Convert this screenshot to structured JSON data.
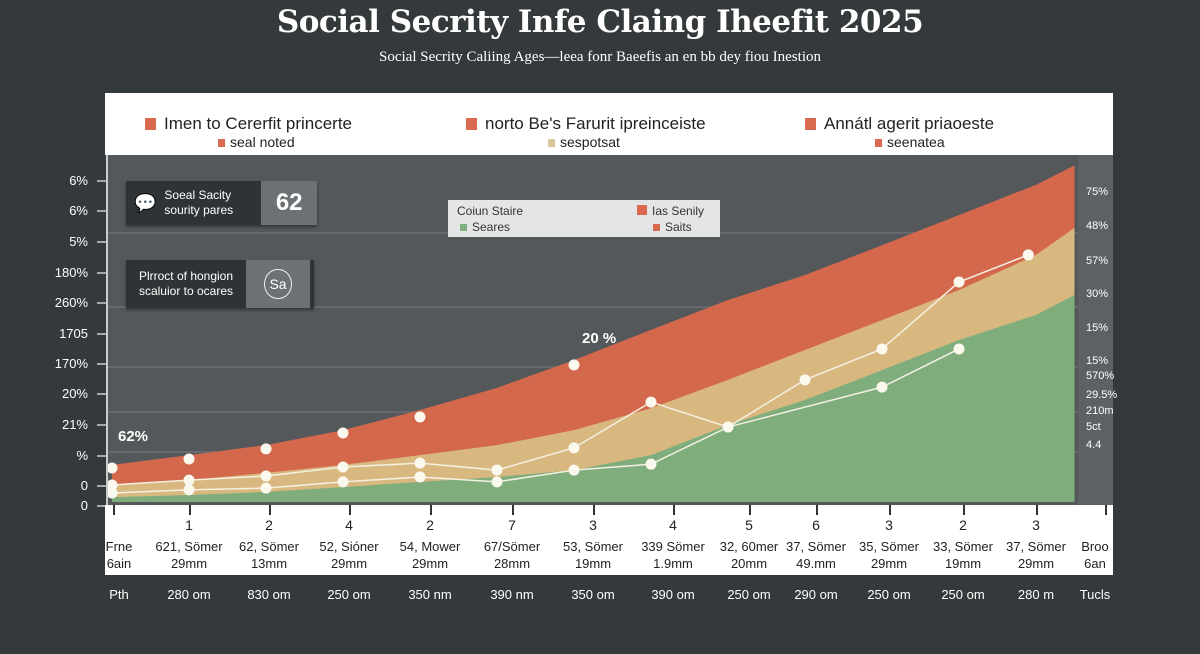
{
  "header": {
    "title": "Social Secrity Infe Claing Iheefit  2025",
    "subtitle": "Social Secrity Caliing Ages—leea fonr Baeefis an en bb dey fiou Inestion"
  },
  "legend_top": [
    {
      "label": "Imen to Cererfit princerte",
      "sub": "seal noted",
      "color": "#d9694f",
      "sub_color": "#d9694f"
    },
    {
      "label": "norto Be's Farurit ipreinceiste",
      "sub": "sespotsat",
      "color": "#d9694f",
      "sub_color": "#d8c79a"
    },
    {
      "label": "Annátl agerit priaoeste",
      "sub": "seenatea",
      "color": "#d9694f",
      "sub_color": "#d9694f"
    }
  ],
  "info_boxes": [
    {
      "text1": "Soeal Sacity",
      "text2": "sourity pares",
      "value": "62",
      "icon": "speech-bubble-icon"
    },
    {
      "text1": "Plrroct of hongion",
      "text2": "scaluior to ocares",
      "value": "Sa",
      "icon": "face-logo-icon"
    }
  ],
  "inner_legend": {
    "title": "Coiun Staire",
    "items": [
      {
        "label": "Seares",
        "color": "#7fb07f"
      },
      {
        "label": "Ias Senily",
        "color": "#d9694f"
      },
      {
        "label": "Saits",
        "color": "#d9694f"
      }
    ]
  },
  "annotations": [
    {
      "text": "62%"
    },
    {
      "text": "20 %"
    }
  ],
  "chart_data": {
    "type": "area",
    "stacked": true,
    "title": "Social Secrity Infe Claing Iheefit  2025",
    "grid": true,
    "legend": "top",
    "y_left_ticks": [
      "6%",
      "6%",
      "5%",
      "180%",
      "260%",
      "1705",
      "170%",
      "20%",
      "21%",
      "%",
      "0",
      "0"
    ],
    "y_right_ticks": [
      "75%",
      "48%",
      "57%",
      "30%",
      "15%",
      "15%",
      "570%",
      "29.5%",
      "210m",
      "5ct",
      "4.4"
    ],
    "categories": [
      "1",
      "2",
      "4",
      "2",
      "7",
      "3",
      "4",
      "5",
      "6",
      "3",
      "2",
      "3"
    ],
    "row_labels": [
      [
        "Frne",
        "6ain"
      ],
      [
        "621, Sömer",
        "29mm"
      ],
      [
        "62, Sömer",
        "13mm"
      ],
      [
        "52, Sióner",
        "29mm"
      ],
      [
        "54, Mower",
        "29mm"
      ],
      [
        "67/Sömer",
        "28mm"
      ],
      [
        "53, Sömer",
        "19mm"
      ],
      [
        "339 Sömer",
        "1.9mm"
      ],
      [
        "32, 60mer",
        "20mm"
      ],
      [
        "37, Sömer",
        "49.mm"
      ],
      [
        "35, Sömer",
        "29mm"
      ],
      [
        "33, Sömer",
        "19mm"
      ],
      [
        "37, Sömer",
        "29mm"
      ],
      [
        "Broo",
        "6an"
      ]
    ],
    "footer_row": [
      "Pth",
      "280 om",
      "830 om",
      "250 om",
      "350 nm",
      "390 nm",
      "350 om",
      "390 om",
      "250 om",
      "290 om",
      "250 om",
      "250 om",
      "280 m",
      "Tucls"
    ],
    "ylim": [
      0,
      100
    ],
    "x": [
      0,
      1,
      2,
      3,
      4,
      5,
      6,
      7,
      8,
      9,
      10,
      11,
      12,
      12.5
    ],
    "series": [
      {
        "layer": "green",
        "color": "#7fae7c",
        "values": [
          1.4,
          2,
          2.9,
          4.3,
          5.8,
          7.2,
          9.2,
          13.5,
          22.2,
          29.4,
          38,
          46.7,
          53.9,
          59.7
        ]
      },
      {
        "layer": "tan",
        "color": "#d9b880",
        "values": [
          4.9,
          6.3,
          8.4,
          10.7,
          13.5,
          16.4,
          20.7,
          27,
          35.2,
          43.8,
          52.4,
          61.1,
          71.2,
          79
        ]
      },
      {
        "layer": "red",
        "color": "#d4684c",
        "values": [
          10.7,
          13.5,
          16.4,
          20.7,
          26.5,
          32.9,
          40.9,
          49.6,
          58.2,
          65.4,
          74,
          82.7,
          91.4,
          97
        ]
      }
    ],
    "points": [
      {
        "line": false,
        "x": [
          0,
          1,
          2,
          3,
          4,
          6
        ],
        "y": [
          9.8,
          12.4,
          15.3,
          19.9,
          24.5,
          39.5
        ]
      },
      {
        "line": true,
        "x": [
          0,
          1,
          2,
          3,
          4,
          5,
          6,
          7,
          8,
          9,
          10,
          11,
          11.9
        ],
        "y": [
          4.9,
          6.3,
          7.5,
          10.1,
          11.2,
          9.2,
          15.6,
          28.8,
          21.6,
          35.2,
          44.1,
          63.4,
          71.2
        ]
      },
      {
        "line": true,
        "x": [
          0,
          1,
          2,
          3,
          4,
          5,
          6,
          7,
          8,
          10,
          11
        ],
        "y": [
          2.6,
          3.5,
          4,
          5.8,
          7.2,
          5.8,
          9.2,
          10.9,
          21.6,
          33.1,
          44.1
        ]
      }
    ]
  }
}
